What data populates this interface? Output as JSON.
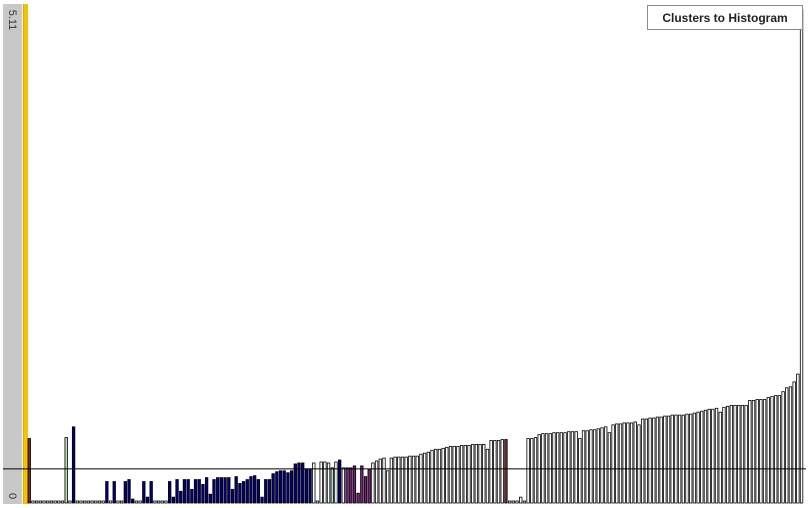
{
  "button": {
    "label": "Clusters to Histogram"
  },
  "axis": {
    "max_label": "5.11",
    "min_label": "0"
  },
  "chart_data": {
    "type": "bar",
    "ylim": [
      0,
      5.11
    ],
    "reference_line": 0.35,
    "colors": {
      "white": "#ffffff",
      "navy": "#000080",
      "purple": "#7a1f7a",
      "brown": "#7a2a2a",
      "green": "#b8e0b0",
      "teal": "#b0d8d8",
      "outline": "#000000",
      "line": "#000000"
    },
    "bars": [
      {
        "v": 0.66,
        "c": "brown"
      },
      {
        "v": 0.0,
        "c": "white"
      },
      {
        "v": 0.0,
        "c": "white"
      },
      {
        "v": 0.0,
        "c": "white"
      },
      {
        "v": 0.0,
        "c": "white"
      },
      {
        "v": 0.0,
        "c": "white"
      },
      {
        "v": 0.0,
        "c": "white"
      },
      {
        "v": 0.0,
        "c": "white"
      },
      {
        "v": 0.0,
        "c": "white"
      },
      {
        "v": 0.0,
        "c": "white"
      },
      {
        "v": 0.67,
        "c": "green"
      },
      {
        "v": 0.0,
        "c": "white"
      },
      {
        "v": 0.78,
        "c": "navy"
      },
      {
        "v": 0.0,
        "c": "white"
      },
      {
        "v": 0.0,
        "c": "white"
      },
      {
        "v": 0.0,
        "c": "white"
      },
      {
        "v": 0.0,
        "c": "white"
      },
      {
        "v": 0.0,
        "c": "white"
      },
      {
        "v": 0.0,
        "c": "white"
      },
      {
        "v": 0.0,
        "c": "white"
      },
      {
        "v": 0.0,
        "c": "white"
      },
      {
        "v": 0.22,
        "c": "navy"
      },
      {
        "v": 0.0,
        "c": "white"
      },
      {
        "v": 0.22,
        "c": "navy"
      },
      {
        "v": 0.0,
        "c": "white"
      },
      {
        "v": 0.0,
        "c": "white"
      },
      {
        "v": 0.22,
        "c": "navy"
      },
      {
        "v": 0.24,
        "c": "navy"
      },
      {
        "v": 0.04,
        "c": "navy"
      },
      {
        "v": 0.0,
        "c": "white"
      },
      {
        "v": 0.0,
        "c": "white"
      },
      {
        "v": 0.22,
        "c": "navy"
      },
      {
        "v": 0.06,
        "c": "navy"
      },
      {
        "v": 0.22,
        "c": "navy"
      },
      {
        "v": 0.0,
        "c": "white"
      },
      {
        "v": 0.0,
        "c": "white"
      },
      {
        "v": 0.0,
        "c": "white"
      },
      {
        "v": 0.0,
        "c": "white"
      },
      {
        "v": 0.22,
        "c": "navy"
      },
      {
        "v": 0.06,
        "c": "navy"
      },
      {
        "v": 0.24,
        "c": "navy"
      },
      {
        "v": 0.12,
        "c": "navy"
      },
      {
        "v": 0.24,
        "c": "navy"
      },
      {
        "v": 0.24,
        "c": "navy"
      },
      {
        "v": 0.14,
        "c": "navy"
      },
      {
        "v": 0.24,
        "c": "navy"
      },
      {
        "v": 0.24,
        "c": "navy"
      },
      {
        "v": 0.19,
        "c": "navy"
      },
      {
        "v": 0.26,
        "c": "navy"
      },
      {
        "v": 0.09,
        "c": "navy"
      },
      {
        "v": 0.24,
        "c": "navy"
      },
      {
        "v": 0.26,
        "c": "navy"
      },
      {
        "v": 0.26,
        "c": "navy"
      },
      {
        "v": 0.26,
        "c": "navy"
      },
      {
        "v": 0.26,
        "c": "navy"
      },
      {
        "v": 0.14,
        "c": "navy"
      },
      {
        "v": 0.27,
        "c": "navy"
      },
      {
        "v": 0.2,
        "c": "navy"
      },
      {
        "v": 0.22,
        "c": "navy"
      },
      {
        "v": 0.24,
        "c": "navy"
      },
      {
        "v": 0.27,
        "c": "navy"
      },
      {
        "v": 0.28,
        "c": "navy"
      },
      {
        "v": 0.24,
        "c": "navy"
      },
      {
        "v": 0.06,
        "c": "navy"
      },
      {
        "v": 0.24,
        "c": "navy"
      },
      {
        "v": 0.24,
        "c": "navy"
      },
      {
        "v": 0.3,
        "c": "navy"
      },
      {
        "v": 0.32,
        "c": "navy"
      },
      {
        "v": 0.33,
        "c": "navy"
      },
      {
        "v": 0.33,
        "c": "navy"
      },
      {
        "v": 0.31,
        "c": "navy"
      },
      {
        "v": 0.33,
        "c": "navy"
      },
      {
        "v": 0.4,
        "c": "navy"
      },
      {
        "v": 0.41,
        "c": "navy"
      },
      {
        "v": 0.41,
        "c": "navy"
      },
      {
        "v": 0.35,
        "c": "navy"
      },
      {
        "v": 0.35,
        "c": "navy"
      },
      {
        "v": 0.41,
        "c": "white"
      },
      {
        "v": 0.0,
        "c": "white"
      },
      {
        "v": 0.42,
        "c": "white"
      },
      {
        "v": 0.42,
        "c": "white"
      },
      {
        "v": 0.41,
        "c": "white"
      },
      {
        "v": 0.36,
        "c": "teal"
      },
      {
        "v": 0.42,
        "c": "white"
      },
      {
        "v": 0.44,
        "c": "navy"
      },
      {
        "v": 0.36,
        "c": "white"
      },
      {
        "v": 0.36,
        "c": "purple"
      },
      {
        "v": 0.36,
        "c": "purple"
      },
      {
        "v": 0.38,
        "c": "purple"
      },
      {
        "v": 0.1,
        "c": "purple"
      },
      {
        "v": 0.38,
        "c": "purple"
      },
      {
        "v": 0.27,
        "c": "purple"
      },
      {
        "v": 0.34,
        "c": "purple"
      },
      {
        "v": 0.41,
        "c": "white"
      },
      {
        "v": 0.43,
        "c": "white"
      },
      {
        "v": 0.45,
        "c": "white"
      },
      {
        "v": 0.46,
        "c": "white"
      },
      {
        "v": 0.33,
        "c": "white"
      },
      {
        "v": 0.46,
        "c": "white"
      },
      {
        "v": 0.47,
        "c": "white"
      },
      {
        "v": 0.47,
        "c": "white"
      },
      {
        "v": 0.47,
        "c": "white"
      },
      {
        "v": 0.47,
        "c": "white"
      },
      {
        "v": 0.48,
        "c": "white"
      },
      {
        "v": 0.48,
        "c": "white"
      },
      {
        "v": 0.48,
        "c": "white"
      },
      {
        "v": 0.5,
        "c": "white"
      },
      {
        "v": 0.51,
        "c": "white"
      },
      {
        "v": 0.52,
        "c": "white"
      },
      {
        "v": 0.54,
        "c": "white"
      },
      {
        "v": 0.55,
        "c": "white"
      },
      {
        "v": 0.55,
        "c": "white"
      },
      {
        "v": 0.56,
        "c": "white"
      },
      {
        "v": 0.57,
        "c": "white"
      },
      {
        "v": 0.58,
        "c": "white"
      },
      {
        "v": 0.58,
        "c": "white"
      },
      {
        "v": 0.58,
        "c": "white"
      },
      {
        "v": 0.59,
        "c": "white"
      },
      {
        "v": 0.59,
        "c": "white"
      },
      {
        "v": 0.59,
        "c": "white"
      },
      {
        "v": 0.6,
        "c": "white"
      },
      {
        "v": 0.6,
        "c": "white"
      },
      {
        "v": 0.6,
        "c": "white"
      },
      {
        "v": 0.6,
        "c": "white"
      },
      {
        "v": 0.55,
        "c": "white"
      },
      {
        "v": 0.64,
        "c": "white"
      },
      {
        "v": 0.64,
        "c": "white"
      },
      {
        "v": 0.64,
        "c": "white"
      },
      {
        "v": 0.65,
        "c": "white"
      },
      {
        "v": 0.65,
        "c": "brown"
      },
      {
        "v": 0.0,
        "c": "white"
      },
      {
        "v": 0.0,
        "c": "white"
      },
      {
        "v": 0.0,
        "c": "white"
      },
      {
        "v": 0.06,
        "c": "white"
      },
      {
        "v": 0.0,
        "c": "white"
      },
      {
        "v": 0.66,
        "c": "white"
      },
      {
        "v": 0.66,
        "c": "white"
      },
      {
        "v": 0.67,
        "c": "white"
      },
      {
        "v": 0.7,
        "c": "white"
      },
      {
        "v": 0.71,
        "c": "white"
      },
      {
        "v": 0.71,
        "c": "white"
      },
      {
        "v": 0.71,
        "c": "white"
      },
      {
        "v": 0.72,
        "c": "white"
      },
      {
        "v": 0.72,
        "c": "white"
      },
      {
        "v": 0.72,
        "c": "white"
      },
      {
        "v": 0.72,
        "c": "white"
      },
      {
        "v": 0.73,
        "c": "white"
      },
      {
        "v": 0.73,
        "c": "white"
      },
      {
        "v": 0.73,
        "c": "white"
      },
      {
        "v": 0.66,
        "c": "white"
      },
      {
        "v": 0.74,
        "c": "white"
      },
      {
        "v": 0.74,
        "c": "white"
      },
      {
        "v": 0.75,
        "c": "white"
      },
      {
        "v": 0.75,
        "c": "white"
      },
      {
        "v": 0.76,
        "c": "white"
      },
      {
        "v": 0.77,
        "c": "white"
      },
      {
        "v": 0.78,
        "c": "white"
      },
      {
        "v": 0.72,
        "c": "white"
      },
      {
        "v": 0.8,
        "c": "white"
      },
      {
        "v": 0.81,
        "c": "white"
      },
      {
        "v": 0.81,
        "c": "white"
      },
      {
        "v": 0.82,
        "c": "white"
      },
      {
        "v": 0.82,
        "c": "white"
      },
      {
        "v": 0.82,
        "c": "white"
      },
      {
        "v": 0.83,
        "c": "white"
      },
      {
        "v": 0.8,
        "c": "white"
      },
      {
        "v": 0.86,
        "c": "white"
      },
      {
        "v": 0.86,
        "c": "white"
      },
      {
        "v": 0.87,
        "c": "white"
      },
      {
        "v": 0.87,
        "c": "white"
      },
      {
        "v": 0.88,
        "c": "white"
      },
      {
        "v": 0.88,
        "c": "white"
      },
      {
        "v": 0.89,
        "c": "white"
      },
      {
        "v": 0.89,
        "c": "white"
      },
      {
        "v": 0.9,
        "c": "white"
      },
      {
        "v": 0.9,
        "c": "white"
      },
      {
        "v": 0.9,
        "c": "white"
      },
      {
        "v": 0.9,
        "c": "white"
      },
      {
        "v": 0.91,
        "c": "white"
      },
      {
        "v": 0.91,
        "c": "white"
      },
      {
        "v": 0.92,
        "c": "white"
      },
      {
        "v": 0.93,
        "c": "white"
      },
      {
        "v": 0.94,
        "c": "white"
      },
      {
        "v": 0.95,
        "c": "white"
      },
      {
        "v": 0.96,
        "c": "white"
      },
      {
        "v": 0.96,
        "c": "white"
      },
      {
        "v": 0.97,
        "c": "white"
      },
      {
        "v": 0.93,
        "c": "white"
      },
      {
        "v": 0.98,
        "c": "white"
      },
      {
        "v": 0.99,
        "c": "white"
      },
      {
        "v": 1.0,
        "c": "white"
      },
      {
        "v": 1.0,
        "c": "white"
      },
      {
        "v": 1.0,
        "c": "white"
      },
      {
        "v": 1.0,
        "c": "white"
      },
      {
        "v": 1.0,
        "c": "white"
      },
      {
        "v": 1.05,
        "c": "white"
      },
      {
        "v": 1.05,
        "c": "white"
      },
      {
        "v": 1.06,
        "c": "white"
      },
      {
        "v": 1.06,
        "c": "white"
      },
      {
        "v": 1.06,
        "c": "white"
      },
      {
        "v": 1.08,
        "c": "white"
      },
      {
        "v": 1.09,
        "c": "white"
      },
      {
        "v": 1.1,
        "c": "white"
      },
      {
        "v": 1.1,
        "c": "white"
      },
      {
        "v": 1.14,
        "c": "white"
      },
      {
        "v": 1.18,
        "c": "white"
      },
      {
        "v": 1.19,
        "c": "white"
      },
      {
        "v": 1.24,
        "c": "white"
      },
      {
        "v": 1.32,
        "c": "white"
      },
      {
        "v": 5.05,
        "c": "white"
      }
    ]
  }
}
